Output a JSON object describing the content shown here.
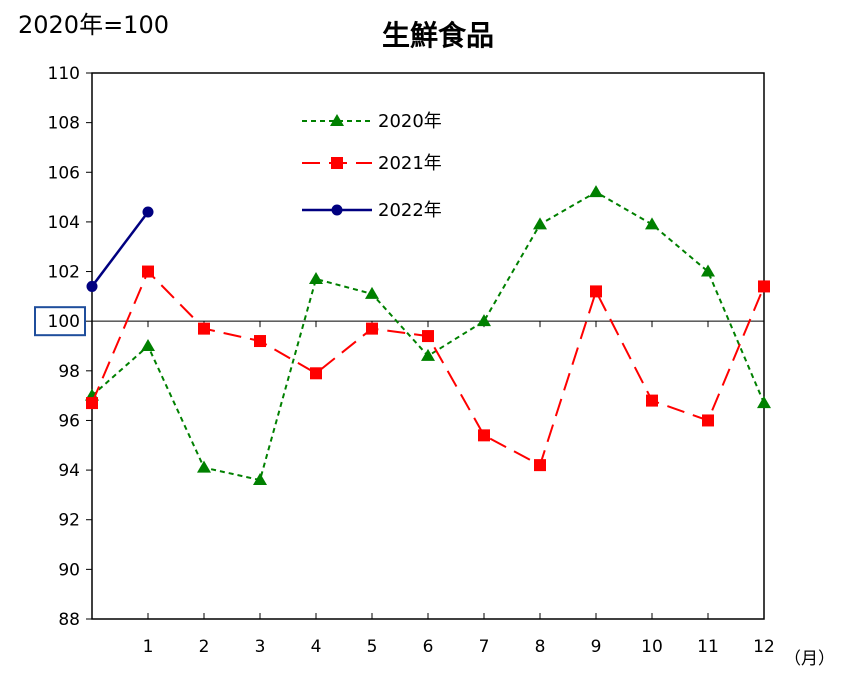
{
  "header": {
    "base_label": "2020年=100"
  },
  "chart_data": {
    "type": "line",
    "title": "生鮮食品",
    "xlabel": "（月）",
    "ylabel": "",
    "x_tick_labels": [
      "1",
      "2",
      "3",
      "4",
      "5",
      "6",
      "7",
      "8",
      "9",
      "10",
      "11",
      "12"
    ],
    "y_ticks": [
      88,
      90,
      92,
      94,
      96,
      98,
      100,
      102,
      104,
      106,
      108,
      110
    ],
    "ylim": [
      88,
      110
    ],
    "xlim": [
      0,
      12
    ],
    "reference_line": 100,
    "highlighted_tick": "100",
    "grid": false,
    "legend_position": "top-center",
    "series": [
      {
        "name": "2020年",
        "color": "#008000",
        "marker": "triangle",
        "line_style": "dotted",
        "x": [
          0,
          1,
          2,
          3,
          4,
          5,
          6,
          7,
          8,
          9,
          10,
          11,
          12
        ],
        "y": [
          97.0,
          99.0,
          94.1,
          93.6,
          101.7,
          101.1,
          98.6,
          100.0,
          103.9,
          105.2,
          103.9,
          102.0,
          96.7
        ]
      },
      {
        "name": "2021年",
        "color": "#ff0000",
        "marker": "square",
        "line_style": "dashed",
        "x": [
          0,
          1,
          2,
          3,
          4,
          5,
          6,
          7,
          8,
          9,
          10,
          11,
          12
        ],
        "y": [
          96.7,
          102.0,
          99.7,
          99.2,
          97.9,
          99.7,
          99.4,
          95.4,
          94.2,
          101.2,
          96.8,
          96.0,
          101.4
        ]
      },
      {
        "name": "2022年",
        "color": "#000080",
        "marker": "circle",
        "line_style": "solid",
        "x": [
          0,
          1
        ],
        "y": [
          101.4,
          104.4
        ]
      }
    ]
  }
}
